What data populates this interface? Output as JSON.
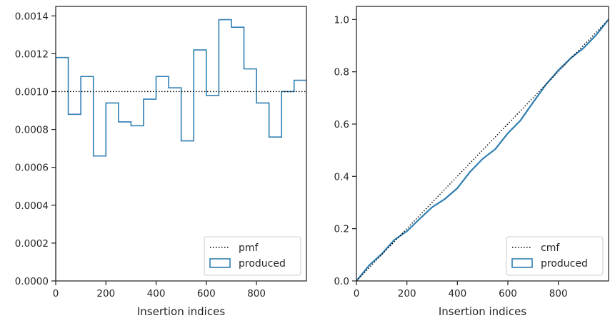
{
  "colors": {
    "produced": "#2f7fb2",
    "reference": "#000000",
    "axes": "#262626",
    "legend_border": "#cccccc"
  },
  "chart_data": [
    {
      "type": "step",
      "xlabel": "Insertion indices",
      "ylabel": "",
      "xlim": [
        0,
        999
      ],
      "ylim": [
        0,
        0.00145
      ],
      "xticks": [
        0,
        200,
        400,
        600,
        800
      ],
      "xtick_labels": [
        "0",
        "200",
        "400",
        "600",
        "800"
      ],
      "yticks": [
        0,
        0.0002,
        0.0004,
        0.0006,
        0.0008,
        0.001,
        0.0012,
        0.0014
      ],
      "ytick_labels": [
        "0.0000",
        "0.0002",
        "0.0004",
        "0.0006",
        "0.0008",
        "0.0010",
        "0.0012",
        "0.0014"
      ],
      "legend_position": "lower-right",
      "series": [
        {
          "name": "pmf",
          "style": "dotted",
          "x": [
            0,
            999
          ],
          "y": [
            0.001,
            0.001
          ]
        },
        {
          "name": "produced",
          "style": "step",
          "bin_edges": [
            0,
            50,
            100,
            150,
            200,
            250,
            300,
            350,
            400,
            450,
            500,
            550,
            600,
            650,
            700,
            750,
            800,
            850,
            900,
            950,
            1000
          ],
          "values": [
            0.00118,
            0.00088,
            0.00108,
            0.00066,
            0.00094,
            0.00084,
            0.00082,
            0.00096,
            0.00108,
            0.00102,
            0.00074,
            0.00122,
            0.00098,
            0.00138,
            0.00134,
            0.00112,
            0.00094,
            0.00076,
            0.001,
            0.00106
          ]
        }
      ]
    },
    {
      "type": "line",
      "xlabel": "Insertion indices",
      "ylabel": "",
      "xlim": [
        0,
        999
      ],
      "ylim": [
        0,
        1.05
      ],
      "xticks": [
        0,
        200,
        400,
        600,
        800
      ],
      "xtick_labels": [
        "0",
        "200",
        "400",
        "600",
        "800"
      ],
      "yticks": [
        0,
        0.2,
        0.4,
        0.6,
        0.8,
        1.0
      ],
      "ytick_labels": [
        "0.0",
        "0.2",
        "0.4",
        "0.6",
        "0.8",
        "1.0"
      ],
      "legend_position": "lower-right",
      "series": [
        {
          "name": "cmf",
          "style": "dotted",
          "x": [
            0,
            999
          ],
          "y": [
            0,
            1
          ]
        },
        {
          "name": "produced",
          "style": "solid",
          "x": [
            0,
            50,
            100,
            150,
            200,
            250,
            300,
            350,
            400,
            450,
            500,
            550,
            600,
            650,
            700,
            750,
            800,
            850,
            900,
            950,
            999
          ],
          "y": [
            0,
            0.059,
            0.103,
            0.157,
            0.19,
            0.237,
            0.282,
            0.313,
            0.355,
            0.417,
            0.467,
            0.504,
            0.565,
            0.614,
            0.683,
            0.75,
            0.806,
            0.853,
            0.891,
            0.941,
            1.0
          ]
        }
      ]
    }
  ]
}
